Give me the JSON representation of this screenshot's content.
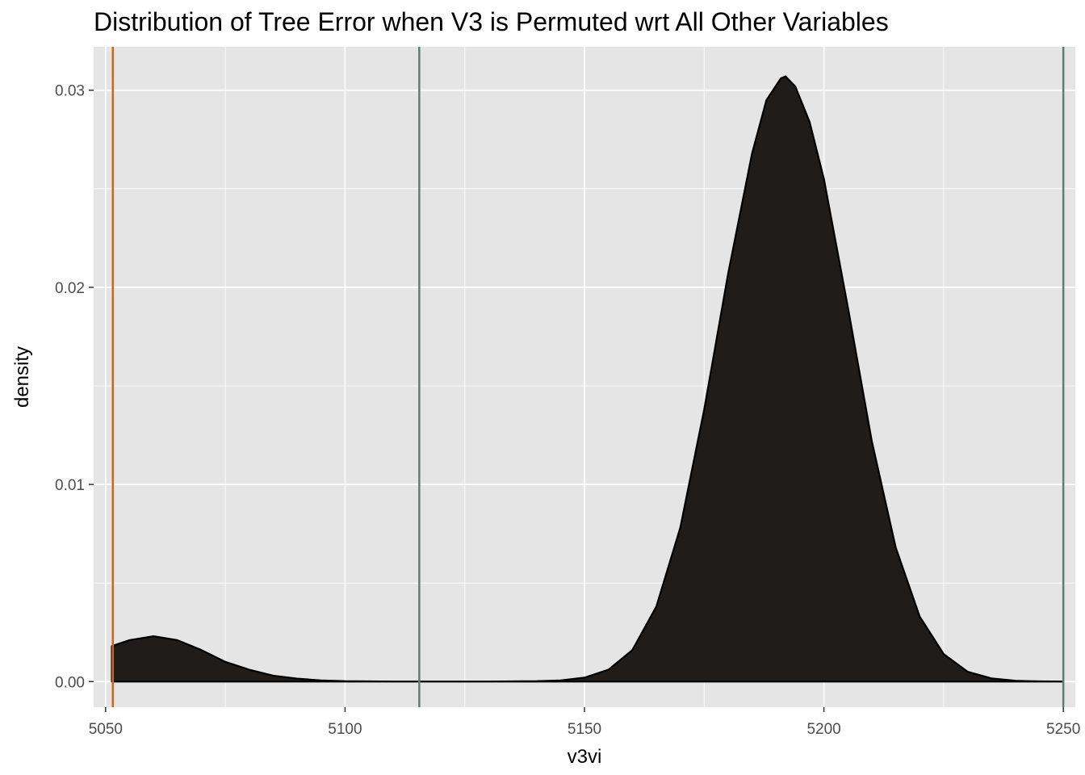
{
  "chart_data": {
    "type": "area",
    "title": "Distribution of Tree Error when V3 is Permuted wrt All Other Variables",
    "xlabel": "v3vi",
    "ylabel": "density",
    "xlim": [
      5047.5,
      5252.5
    ],
    "ylim": [
      -0.0013,
      0.0322
    ],
    "x_ticks": [
      5050,
      5100,
      5150,
      5200,
      5250
    ],
    "x_tick_labels": [
      "5050",
      "5100",
      "5150",
      "5200",
      "5250"
    ],
    "y_ticks": [
      0.0,
      0.01,
      0.02,
      0.03
    ],
    "y_tick_labels": [
      "0.00",
      "0.01",
      "0.02",
      "0.03"
    ],
    "grid": true,
    "legend": "none",
    "density_curve": {
      "x": [
        5051.3,
        5055,
        5060,
        5065,
        5070,
        5075,
        5080,
        5085,
        5090,
        5095,
        5100,
        5110,
        5120,
        5130,
        5140,
        5145,
        5150,
        5155,
        5160,
        5165,
        5170,
        5175,
        5180,
        5185,
        5188,
        5191,
        5192,
        5194,
        5197,
        5200,
        5205,
        5210,
        5215,
        5220,
        5225,
        5230,
        5235,
        5240,
        5245,
        5250
      ],
      "y": [
        0.0018,
        0.0021,
        0.0023,
        0.0021,
        0.0016,
        0.001,
        0.0006,
        0.0003,
        0.00015,
        6e-05,
        2e-05,
        0.0,
        0.0,
        0.0,
        2e-05,
        6e-05,
        0.0002,
        0.0006,
        0.0016,
        0.0038,
        0.0078,
        0.0138,
        0.0207,
        0.0268,
        0.0295,
        0.0306,
        0.0307,
        0.0302,
        0.0284,
        0.0255,
        0.019,
        0.0122,
        0.0068,
        0.0033,
        0.0014,
        0.0005,
        0.00016,
        4e-05,
        1e-05,
        0.0
      ]
    },
    "vlines": [
      {
        "x": 5051.5,
        "color": "#c2692b"
      },
      {
        "x": 5115.5,
        "color": "#667a72"
      },
      {
        "x": 5250,
        "color": "#667a72"
      }
    ],
    "colors": {
      "fill": "#201c19",
      "outline": "#000000",
      "panel": "#e5e5e5",
      "grid": "#ffffff"
    }
  }
}
